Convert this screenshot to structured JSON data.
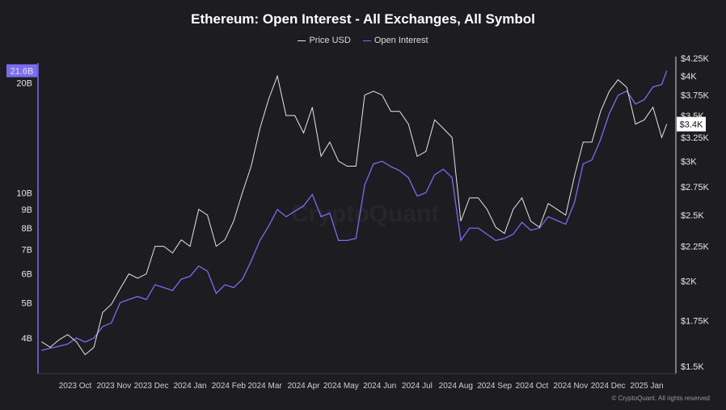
{
  "chart_data": {
    "type": "line",
    "title": "Ethereum: Open Interest - All Exchanges, All Symbol",
    "legend": [
      "Price USD",
      "Open Interest"
    ],
    "legend_placement": "top-center",
    "colors": {
      "price": "#e6e6e6",
      "oi": "#7b6cf0",
      "background": "#1c1c21"
    },
    "left_axis": {
      "scale": "log",
      "ticks": [
        "4B",
        "5B",
        "6B",
        "7B",
        "8B",
        "9B",
        "10B",
        "20B"
      ],
      "tick_values": [
        4,
        5,
        6,
        7,
        8,
        9,
        10,
        20
      ],
      "current_label": "21.6B",
      "range": [
        3.3,
        22.5
      ]
    },
    "right_axis": {
      "scale": "log",
      "ticks": [
        "$1.5K",
        "$1.75K",
        "$2K",
        "$2.25K",
        "$2.5K",
        "$2.75K",
        "$3K",
        "$3.25K",
        "$3.5K",
        "$3.75K",
        "$4K",
        "$4.25K"
      ],
      "tick_values": [
        1.5,
        1.75,
        2,
        2.25,
        2.5,
        2.75,
        3,
        3.25,
        3.5,
        3.75,
        4,
        4.25
      ],
      "current_label": "$3.4K",
      "current_value": 3.4
    },
    "x_ticks": [
      {
        "label": "2023 Oct",
        "date": "2023-10-01"
      },
      {
        "label": "2023 Nov",
        "date": "2023-11-01"
      },
      {
        "label": "2023 Dec",
        "date": "2023-12-01"
      },
      {
        "label": "2024 Jan",
        "date": "2024-01-01"
      },
      {
        "label": "2024 Feb",
        "date": "2024-02-01"
      },
      {
        "label": "2024 Mar",
        "date": "2024-03-01"
      },
      {
        "label": "2024 Apr",
        "date": "2024-04-01"
      },
      {
        "label": "2024 May",
        "date": "2024-05-01"
      },
      {
        "label": "2024 Jun",
        "date": "2024-06-01"
      },
      {
        "label": "2024 Jul",
        "date": "2024-07-01"
      },
      {
        "label": "2024 Aug",
        "date": "2024-08-01"
      },
      {
        "label": "2024 Sep",
        "date": "2024-09-01"
      },
      {
        "label": "2024 Oct",
        "date": "2024-10-01"
      },
      {
        "label": "2024 Nov",
        "date": "2024-11-01"
      },
      {
        "label": "2024 Dec",
        "date": "2024-12-01"
      },
      {
        "label": "2025 Jan",
        "date": "2025-01-01"
      }
    ],
    "series_units": {
      "price": "USD thousands",
      "oi": "USD billions"
    },
    "points": [
      [
        "2023-09-04",
        1.63,
        3.7
      ],
      [
        "2023-09-11",
        1.6,
        3.75
      ],
      [
        "2023-09-18",
        1.64,
        3.8
      ],
      [
        "2023-09-25",
        1.67,
        3.85
      ],
      [
        "2023-10-02",
        1.63,
        4.0
      ],
      [
        "2023-10-09",
        1.56,
        3.9
      ],
      [
        "2023-10-16",
        1.6,
        4.0
      ],
      [
        "2023-10-23",
        1.8,
        4.3
      ],
      [
        "2023-10-30",
        1.85,
        4.4
      ],
      [
        "2023-11-06",
        1.95,
        5.0
      ],
      [
        "2023-11-13",
        2.05,
        5.1
      ],
      [
        "2023-11-20",
        2.02,
        5.2
      ],
      [
        "2023-11-27",
        2.05,
        5.1
      ],
      [
        "2023-12-04",
        2.25,
        5.6
      ],
      [
        "2023-12-11",
        2.25,
        5.5
      ],
      [
        "2023-12-18",
        2.2,
        5.4
      ],
      [
        "2023-12-25",
        2.3,
        5.8
      ],
      [
        "2024-01-01",
        2.25,
        5.9
      ],
      [
        "2024-01-08",
        2.55,
        6.3
      ],
      [
        "2024-01-15",
        2.5,
        6.1
      ],
      [
        "2024-01-22",
        2.25,
        5.3
      ],
      [
        "2024-01-29",
        2.3,
        5.6
      ],
      [
        "2024-02-05",
        2.45,
        5.5
      ],
      [
        "2024-02-12",
        2.7,
        5.8
      ],
      [
        "2024-02-19",
        2.95,
        6.5
      ],
      [
        "2024-02-26",
        3.35,
        7.4
      ],
      [
        "2024-03-04",
        3.7,
        8.1
      ],
      [
        "2024-03-11",
        4.0,
        9.0
      ],
      [
        "2024-03-18",
        3.5,
        8.6
      ],
      [
        "2024-03-25",
        3.5,
        8.9
      ],
      [
        "2024-04-01",
        3.3,
        9.2
      ],
      [
        "2024-04-08",
        3.6,
        9.9
      ],
      [
        "2024-04-15",
        3.05,
        8.6
      ],
      [
        "2024-04-22",
        3.2,
        8.8
      ],
      [
        "2024-04-29",
        3.0,
        7.4
      ],
      [
        "2024-05-06",
        2.95,
        7.4
      ],
      [
        "2024-05-13",
        2.95,
        7.5
      ],
      [
        "2024-05-20",
        3.75,
        10.5
      ],
      [
        "2024-05-27",
        3.8,
        12.0
      ],
      [
        "2024-06-03",
        3.75,
        12.2
      ],
      [
        "2024-06-10",
        3.55,
        11.8
      ],
      [
        "2024-06-17",
        3.55,
        11.5
      ],
      [
        "2024-06-24",
        3.4,
        11.0
      ],
      [
        "2024-07-01",
        3.05,
        9.8
      ],
      [
        "2024-07-08",
        3.1,
        10.0
      ],
      [
        "2024-07-15",
        3.45,
        11.2
      ],
      [
        "2024-07-22",
        3.35,
        11.6
      ],
      [
        "2024-07-29",
        3.25,
        11.0
      ],
      [
        "2024-08-05",
        2.45,
        7.4
      ],
      [
        "2024-08-12",
        2.65,
        8.0
      ],
      [
        "2024-08-19",
        2.65,
        8.0
      ],
      [
        "2024-08-26",
        2.55,
        7.7
      ],
      [
        "2024-09-02",
        2.4,
        7.4
      ],
      [
        "2024-09-09",
        2.35,
        7.5
      ],
      [
        "2024-09-16",
        2.55,
        7.7
      ],
      [
        "2024-09-23",
        2.65,
        8.3
      ],
      [
        "2024-09-30",
        2.45,
        7.9
      ],
      [
        "2024-10-07",
        2.4,
        8.0
      ],
      [
        "2024-10-14",
        2.6,
        8.6
      ],
      [
        "2024-10-21",
        2.55,
        8.4
      ],
      [
        "2024-10-28",
        2.5,
        8.2
      ],
      [
        "2024-11-04",
        2.85,
        9.4
      ],
      [
        "2024-11-11",
        3.2,
        12.0
      ],
      [
        "2024-11-18",
        3.2,
        12.3
      ],
      [
        "2024-11-25",
        3.55,
        14.0
      ],
      [
        "2024-12-02",
        3.8,
        16.5
      ],
      [
        "2024-12-09",
        3.95,
        18.5
      ],
      [
        "2024-12-16",
        3.85,
        19.0
      ],
      [
        "2024-12-23",
        3.4,
        17.5
      ],
      [
        "2024-12-30",
        3.45,
        18.0
      ],
      [
        "2025-01-06",
        3.6,
        19.5
      ],
      [
        "2025-01-13",
        3.25,
        19.8
      ],
      [
        "2025-01-17",
        3.4,
        21.6
      ]
    ]
  },
  "watermark": "CryptoQuant",
  "footer": {
    "copyright": "© CryptoQuant. All rights reserved"
  }
}
